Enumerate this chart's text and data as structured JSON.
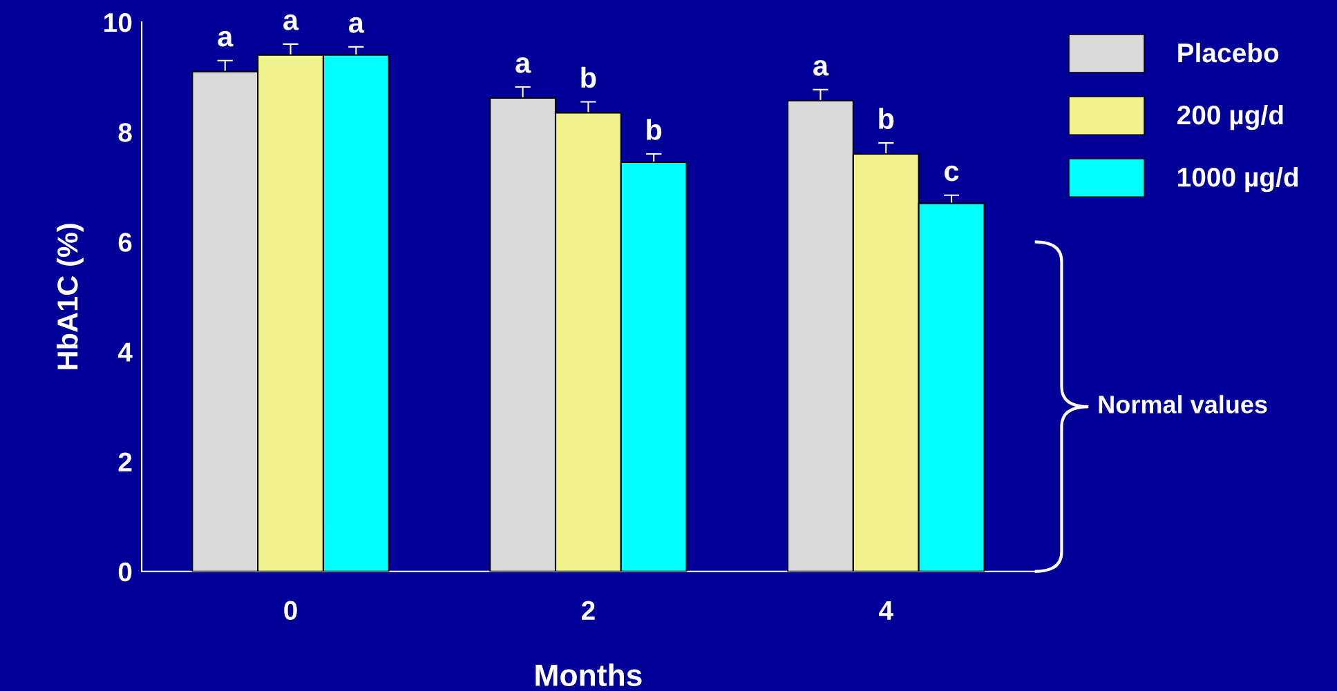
{
  "chart_data": {
    "type": "bar",
    "xlabel": "Months",
    "ylabel": "HbA1C (%)",
    "categories": [
      "0",
      "2",
      "4"
    ],
    "series": [
      {
        "name": "Placebo",
        "color": "#d9d9d9",
        "values": [
          9.1,
          8.62,
          8.57
        ],
        "errors": [
          0.2,
          0.2,
          0.2
        ],
        "value_labels": [
          "a",
          "a",
          "a"
        ]
      },
      {
        "name": "200 µg/d",
        "color": "#f2f28c",
        "values": [
          9.4,
          8.35,
          7.6
        ],
        "errors": [
          0.2,
          0.2,
          0.2
        ],
        "value_labels": [
          "a",
          "b",
          "b"
        ]
      },
      {
        "name": "1000 µg/d",
        "color": "#00ffff",
        "values": [
          9.4,
          7.45,
          6.7
        ],
        "errors": [
          0.15,
          0.15,
          0.15
        ],
        "value_labels": [
          "a",
          "b",
          "c"
        ]
      }
    ],
    "ylim": [
      0,
      10
    ],
    "yticks": [
      0,
      2,
      4,
      6,
      8,
      10
    ],
    "grid": false,
    "legend": "top right",
    "annotations": [
      "Normal values"
    ]
  }
}
